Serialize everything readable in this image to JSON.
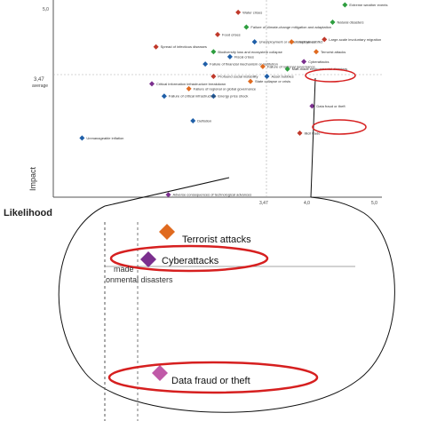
{
  "chart_data": {
    "type": "scatter",
    "xlabel": "Likelihood",
    "ylabel": "Impact",
    "xlim": [
      1.0,
      5.0
    ],
    "ylim": [
      1.0,
      5.0
    ],
    "x_tick_labels": [
      "3,47",
      "4,0",
      "5,0"
    ],
    "y_tick_labels": [
      "3,47",
      "average",
      "5,0"
    ],
    "risk_categories_colors": {
      "economic": "#1f5fa8",
      "environmental": "#2e9e3f",
      "geopolitical": "#e06a1f",
      "societal": "#c0392b",
      "technological": "#7b2f8e"
    },
    "points": [
      {
        "label": "Extreme weather events",
        "x": 4.55,
        "y": 4.9,
        "color": "#2e9e3f"
      },
      {
        "label": "Natural disasters",
        "x": 4.4,
        "y": 4.55,
        "color": "#2e9e3f"
      },
      {
        "label": "Water crises",
        "x": 3.25,
        "y": 4.75,
        "color": "#c0392b"
      },
      {
        "label": "Failure of climate-change mitigation and adaptation",
        "x": 3.35,
        "y": 4.45,
        "color": "#2e9e3f"
      },
      {
        "label": "Large-scale involuntary migration",
        "x": 4.3,
        "y": 4.2,
        "color": "#c0392b"
      },
      {
        "label": "Food crises",
        "x": 3.0,
        "y": 4.3,
        "color": "#c0392b"
      },
      {
        "label": "Unemployment or underemployment",
        "x": 3.45,
        "y": 4.15,
        "color": "#1f5fa8"
      },
      {
        "label": "Interstate conflict",
        "x": 3.9,
        "y": 4.15,
        "color": "#e06a1f"
      },
      {
        "label": "Spread of infectious diseases",
        "x": 2.25,
        "y": 4.05,
        "color": "#c0392b"
      },
      {
        "label": "Terrorist attacks",
        "x": 4.2,
        "y": 3.95,
        "color": "#e06a1f"
      },
      {
        "label": "Biodiversity loss and ecosystem collapse",
        "x": 2.95,
        "y": 3.95,
        "color": "#2e9e3f"
      },
      {
        "label": "Fiscal crises",
        "x": 3.15,
        "y": 3.85,
        "color": "#1f5fa8"
      },
      {
        "label": "Cyberattacks",
        "x": 4.05,
        "y": 3.75,
        "color": "#7b2f8e"
      },
      {
        "label": "Failure of financial mechanism or institution",
        "x": 2.85,
        "y": 3.7,
        "color": "#1f5fa8"
      },
      {
        "label": "Failure of national governance",
        "x": 3.55,
        "y": 3.65,
        "color": "#e06a1f"
      },
      {
        "label": "Man-made environmental disasters",
        "x": 3.85,
        "y": 3.6,
        "color": "#2e9e3f"
      },
      {
        "label": "Asset bubbles",
        "x": 3.6,
        "y": 3.45,
        "color": "#1f5fa8"
      },
      {
        "label": "Profound social instability",
        "x": 2.95,
        "y": 3.45,
        "color": "#c0392b"
      },
      {
        "label": "State collapse or crisis",
        "x": 3.4,
        "y": 3.35,
        "color": "#e06a1f"
      },
      {
        "label": "Critical information infrastructure breakdown",
        "x": 2.2,
        "y": 3.3,
        "color": "#7b2f8e"
      },
      {
        "label": "Failure of regional or global governance",
        "x": 2.65,
        "y": 3.2,
        "color": "#e06a1f"
      },
      {
        "label": "Energy price shock",
        "x": 2.95,
        "y": 3.05,
        "color": "#1f5fa8"
      },
      {
        "label": "Failure of critical infrastructure",
        "x": 2.35,
        "y": 3.05,
        "color": "#1f5fa8"
      },
      {
        "label": "Data fraud or theft",
        "x": 4.15,
        "y": 2.85,
        "color": "#7b2f8e"
      },
      {
        "label": "Deflation",
        "x": 2.7,
        "y": 2.55,
        "color": "#1f5fa8"
      },
      {
        "label": "Illicit trade",
        "x": 4.0,
        "y": 2.3,
        "color": "#c0392b"
      },
      {
        "label": "Unmanageable inflation",
        "x": 1.35,
        "y": 2.2,
        "color": "#1f5fa8"
      },
      {
        "label": "Adverse consequences of technological advances",
        "x": 2.4,
        "y": 1.05,
        "color": "#7b2f8e"
      }
    ],
    "callout": {
      "highlighted": [
        {
          "label": "Terrorist attacks",
          "color": "#e06a1f"
        },
        {
          "label": "Cyberattacks",
          "color": "#7b2f8e"
        },
        {
          "label": "Data fraud or theft",
          "color": "#7b2f8e"
        }
      ],
      "partial_text": "made\nonmental disasters",
      "ring_color": "#d61f1f"
    }
  }
}
